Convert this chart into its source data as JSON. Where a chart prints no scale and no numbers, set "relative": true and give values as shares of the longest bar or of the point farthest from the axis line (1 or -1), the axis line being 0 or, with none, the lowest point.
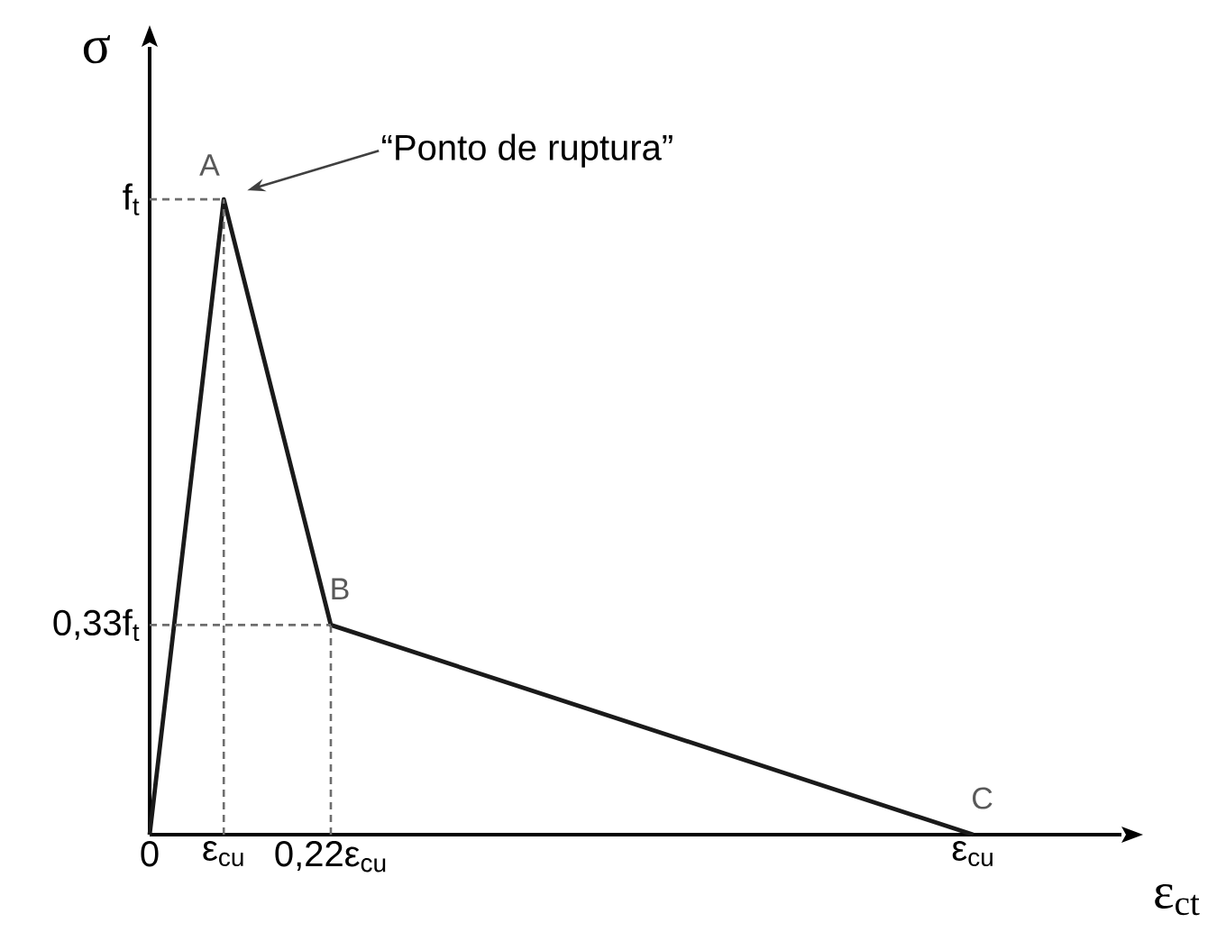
{
  "chart_data": {
    "type": "line",
    "relative": true,
    "xlabel": "ε$_{ct}$",
    "ylabel": "σ",
    "x": [
      0,
      0.09,
      0.22,
      1
    ],
    "values": [
      0,
      1,
      0.33,
      0
    ],
    "color": "#1a1a1a",
    "line_style": "solid",
    "xlim": [
      0,
      1.18
    ],
    "xticks": [
      0,
      {
        "value": 0.09,
        "label": "ε$_{cu}$"
      },
      {
        "value": 0.22,
        "label": "0,22ε$_{cu}$"
      },
      {
        "value": 1,
        "label": "ε$_{cu}$"
      }
    ],
    "ref_lines": [
      {
        "axis": "y",
        "value": 1,
        "label": "f$_{t}$",
        "line_style": "dashed",
        "color": "#6e6e6e"
      },
      {
        "axis": "y",
        "value": 0.33,
        "label": "0,33f$_{t}$",
        "line_style": "dashed",
        "color": "#6e6e6e"
      },
      {
        "axis": "x",
        "value": 0.09,
        "line_style": "dashed",
        "color": "#6e6e6e"
      },
      {
        "axis": "x",
        "value": 0.22,
        "line_style": "dashed",
        "color": "#6e6e6e"
      }
    ],
    "annotations": [
      {
        "text": "A",
        "x": 0.09,
        "y": 1
      },
      "“Ponto de ruptura”",
      {
        "text": "B",
        "x": 0.22,
        "y": 0.33
      },
      {
        "text": "C",
        "x": 1,
        "y": 0
      }
    ]
  }
}
